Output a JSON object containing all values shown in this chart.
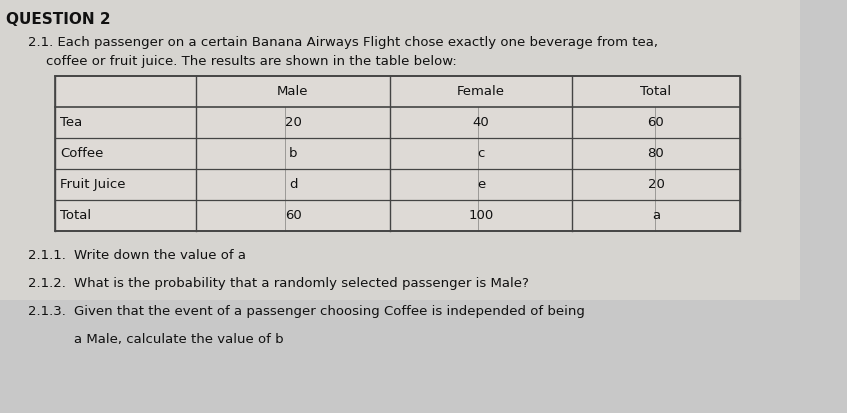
{
  "title": "QUESTION 2",
  "intro_line1": "2.1. Each passenger on a certain Banana Airways Flight chose exactly one beverage from tea,",
  "intro_line2": "coffee or fruit juice. The results are shown in the table below:",
  "table_headers": [
    "",
    "Male",
    "Female",
    "Total"
  ],
  "table_rows": [
    [
      "Tea",
      "20",
      "40",
      "60"
    ],
    [
      "Coffee",
      "b",
      "c",
      "80"
    ],
    [
      "Fruit Juice",
      "d",
      "e",
      "20"
    ],
    [
      "Total",
      "60",
      "100",
      "a"
    ]
  ],
  "questions": [
    [
      "2.1.1.",
      "Write down the value of a"
    ],
    [
      "2.1.2.",
      "What is the probability that a randomly selected passenger is Male?"
    ],
    [
      "2.1.3.",
      "Given that the event of a passenger choosing Coffee is independed of being"
    ],
    [
      "",
      "a Male, calculate the value of b"
    ]
  ],
  "bg_color": "#c8c8c8",
  "paper_color": "#d6d4d0",
  "text_color": "#111111",
  "border_color": "#444444",
  "font_size_title": 11,
  "font_size_body": 9.5,
  "font_size_table": 9.5
}
